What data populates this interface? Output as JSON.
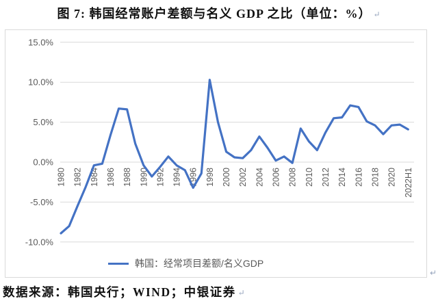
{
  "title": {
    "text": "图 7: 韩国经常账户差额与名义 GDP 之比（单位：%）",
    "pilcrow": "↵"
  },
  "source_note": "数据来源：韩国央行；WIND；中银证券",
  "chart_data": {
    "type": "line",
    "title": "韩国经常账户差额与名义GDP之比",
    "xlabel": "",
    "ylabel": "",
    "ylim": [
      -10,
      15
    ],
    "grid": true,
    "legend_position": "bottom",
    "grid_color": "#d9d9d9",
    "axis_text_color": "#595959",
    "categories": [
      "1980",
      "1981",
      "1982",
      "1983",
      "1984",
      "1985",
      "1986",
      "1987",
      "1988",
      "1989",
      "1990",
      "1991",
      "1992",
      "1993",
      "1994",
      "1995",
      "1996",
      "1997",
      "1998",
      "1999",
      "2000",
      "2001",
      "2002",
      "2003",
      "2004",
      "2005",
      "2006",
      "2007",
      "2008",
      "2009",
      "2010",
      "2011",
      "2012",
      "2013",
      "2014",
      "2015",
      "2016",
      "2017",
      "2018",
      "2019",
      "2020",
      "2021",
      "2022H1"
    ],
    "x_tick_labels": [
      "1980",
      "1982",
      "1984",
      "1986",
      "1988",
      "1990",
      "1992",
      "1994",
      "1996",
      "1998",
      "2000",
      "2002",
      "2004",
      "2006",
      "2008",
      "2010",
      "2012",
      "2014",
      "2016",
      "2018",
      "2020",
      "2022H1"
    ],
    "y_axis": {
      "ticks": [
        {
          "label": "15.0%",
          "value": 15
        },
        {
          "label": "10.0%",
          "value": 10
        },
        {
          "label": "5.0%",
          "value": 5
        },
        {
          "label": "0.0%",
          "value": 0
        },
        {
          "label": "-5.0%",
          "value": -5
        },
        {
          "label": "-10.0%",
          "value": -10
        }
      ]
    },
    "series": [
      {
        "name": "韩国：经常项目差额/名义GDP",
        "color": "#4472C4",
        "values": [
          -8.9,
          -8.0,
          -5.5,
          -3.1,
          -0.4,
          -0.2,
          3.4,
          6.7,
          6.6,
          2.3,
          -0.4,
          -1.8,
          -0.6,
          0.7,
          -0.4,
          -1.0,
          -3.2,
          -1.4,
          10.3,
          5.0,
          1.3,
          0.6,
          0.5,
          1.5,
          3.2,
          1.8,
          0.2,
          0.7,
          -0.1,
          4.2,
          2.6,
          1.5,
          3.7,
          5.5,
          5.6,
          7.1,
          6.9,
          5.1,
          4.6,
          3.5,
          4.6,
          4.7,
          4.1
        ]
      }
    ]
  }
}
